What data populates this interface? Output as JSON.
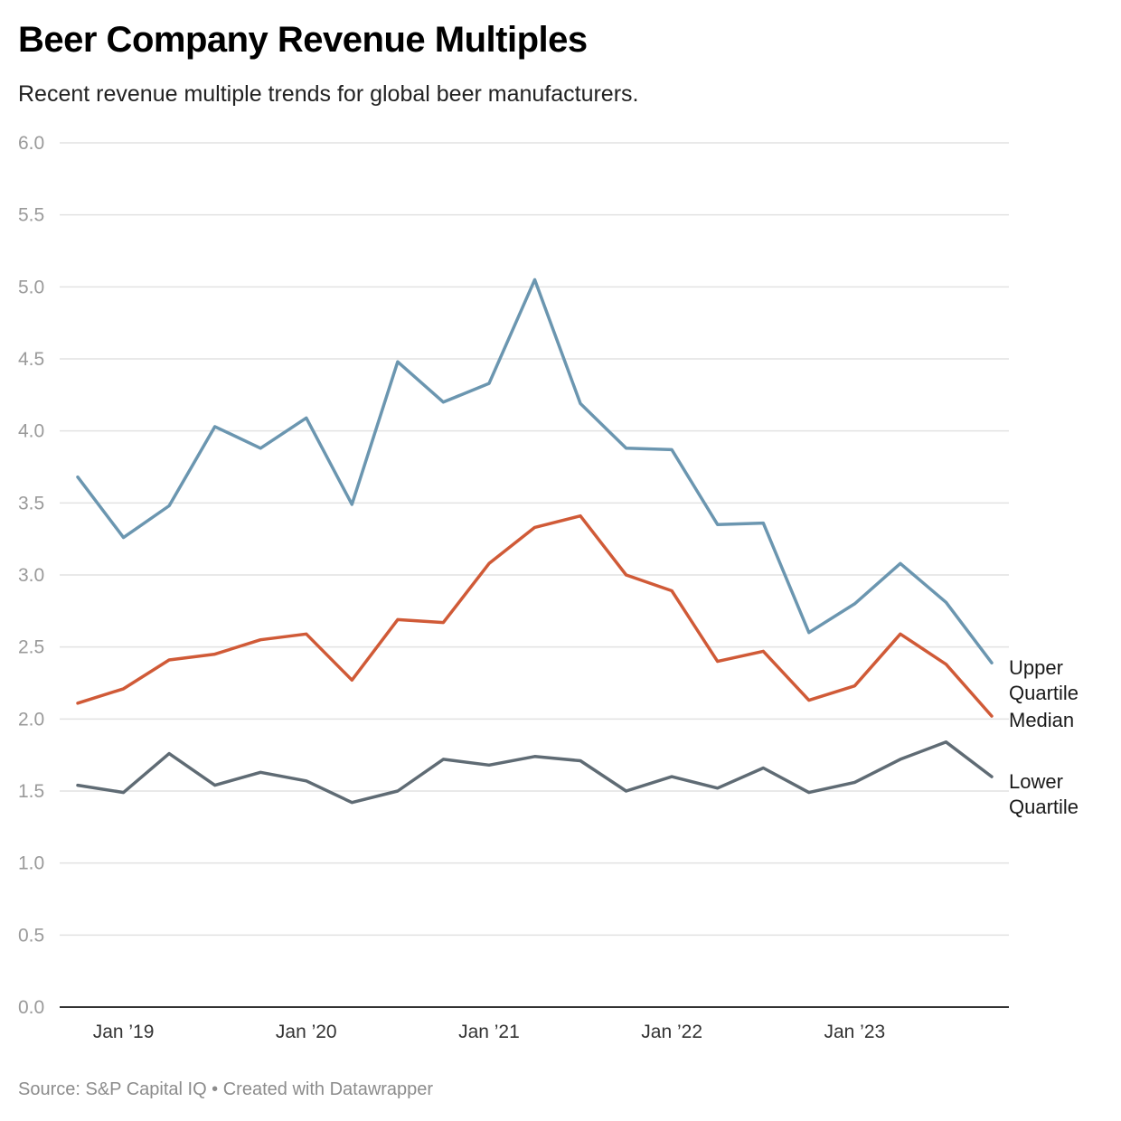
{
  "chart_data": {
    "type": "line",
    "title": "Beer Company Revenue Multiples",
    "subtitle": "Recent revenue multiple trends for global beer manufacturers.",
    "source": "Source: S&P Capital IQ • Created with Datawrapper",
    "x": [
      "2018-10",
      "2019-01",
      "2019-04",
      "2019-07",
      "2019-10",
      "2020-01",
      "2020-04",
      "2020-07",
      "2020-10",
      "2021-01",
      "2021-04",
      "2021-07",
      "2021-10",
      "2022-01",
      "2022-04",
      "2022-07",
      "2022-10",
      "2023-01",
      "2023-04",
      "2023-07",
      "2023-10"
    ],
    "x_ticks": [
      {
        "label": "Jan ’19",
        "x": "2019-01"
      },
      {
        "label": "Jan ’20",
        "x": "2020-01"
      },
      {
        "label": "Jan ’21",
        "x": "2021-01"
      },
      {
        "label": "Jan ’22",
        "x": "2022-01"
      },
      {
        "label": "Jan ’23",
        "x": "2023-01"
      }
    ],
    "ylim": [
      0,
      6
    ],
    "y_ticks": [
      "0.0",
      "0.5",
      "1.0",
      "1.5",
      "2.0",
      "2.5",
      "3.0",
      "3.5",
      "4.0",
      "4.5",
      "5.0",
      "5.5",
      "6.0"
    ],
    "grid": true,
    "legend": "direct labels at line ends (right)",
    "series": [
      {
        "key": "upper",
        "label_lines": [
          "Upper",
          "Quartile"
        ],
        "color": "#6b96b0",
        "values": [
          3.68,
          3.26,
          3.48,
          4.03,
          3.88,
          4.09,
          3.49,
          4.48,
          4.2,
          4.33,
          5.05,
          4.19,
          3.88,
          3.87,
          3.35,
          3.36,
          2.6,
          2.8,
          3.08,
          2.81,
          2.39
        ]
      },
      {
        "key": "median",
        "label_lines": [
          "Median"
        ],
        "color": "#d05a37",
        "values": [
          2.11,
          2.21,
          2.41,
          2.45,
          2.55,
          2.59,
          2.27,
          2.69,
          2.67,
          3.08,
          3.33,
          3.41,
          3.0,
          2.89,
          2.4,
          2.47,
          2.13,
          2.23,
          2.59,
          2.38,
          2.02
        ]
      },
      {
        "key": "lower",
        "label_lines": [
          "Lower",
          "Quartile"
        ],
        "color": "#5f6b74",
        "values": [
          1.54,
          1.49,
          1.76,
          1.54,
          1.63,
          1.57,
          1.42,
          1.5,
          1.72,
          1.68,
          1.74,
          1.71,
          1.5,
          1.6,
          1.52,
          1.66,
          1.49,
          1.56,
          1.72,
          1.84,
          1.6
        ]
      }
    ]
  }
}
